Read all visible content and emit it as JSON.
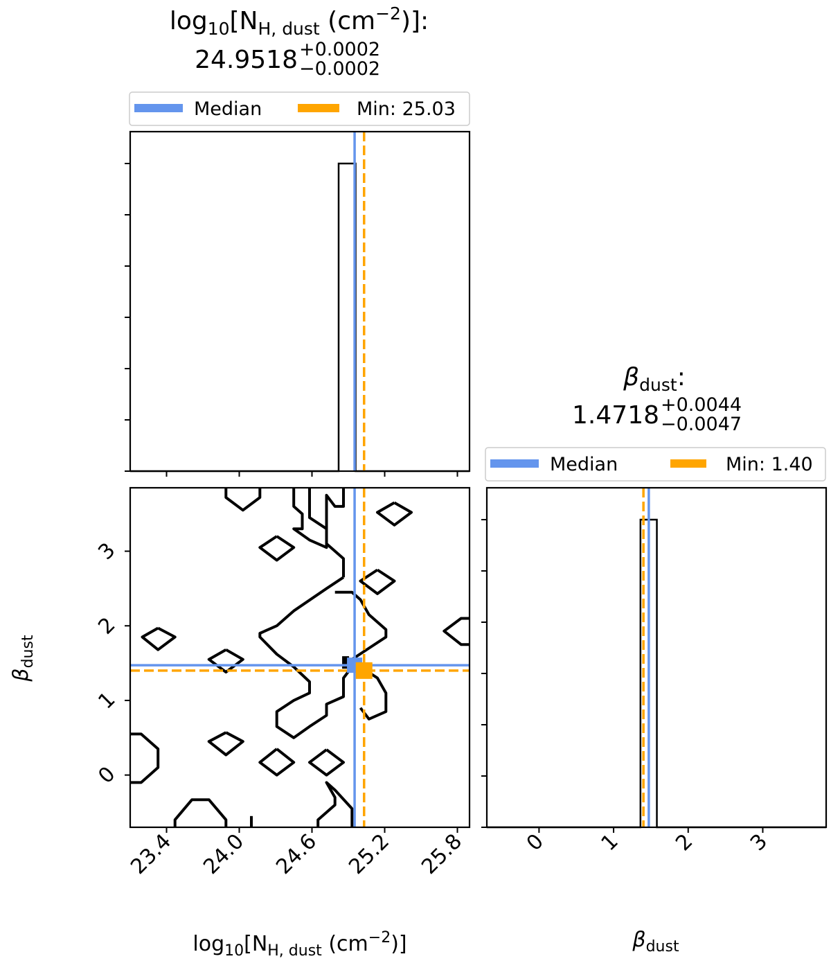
{
  "colors": {
    "median": "#6495ED",
    "min": "#FFA500",
    "contour": "#000000"
  },
  "titles": {
    "nh": {
      "name": "log",
      "name_sub": "10",
      "name_rest": "[N",
      "name_sub2": "H, dust",
      "name_unit": " (cm",
      "name_exp": "−2",
      "name_end": ")]:",
      "value": "24.9518",
      "plus": "+0.0002",
      "minus": "−0.0002"
    },
    "beta": {
      "symbol": "β",
      "symbol_sub": "dust",
      "colon": ":",
      "value": "1.4718",
      "plus": "+0.0044",
      "minus": "−0.0047"
    }
  },
  "legends": {
    "nh": {
      "median_label": "Median",
      "min_label": "Min: 25.03"
    },
    "beta": {
      "median_label": "Median",
      "min_label": "Min: 1.40"
    }
  },
  "axis_labels": {
    "x_nh": {
      "main": "log",
      "sub1": "10",
      "mid": "[N",
      "sub2": "H, dust",
      "unit": " (cm",
      "exp": "−2",
      "end": ")]"
    },
    "x_beta": {
      "main": "β",
      "sub": "dust"
    },
    "y_beta": {
      "main": "β",
      "sub": "dust"
    }
  },
  "chart_data": {
    "type": "corner",
    "parameters": [
      "log10[N_H,dust (cm^-2)]",
      "beta_dust"
    ],
    "nh_range": [
      23.1,
      25.9
    ],
    "beta_range": [
      -0.7,
      3.85
    ],
    "nh_ticks": [
      "23.4",
      "24.0",
      "24.6",
      "25.2",
      "25.8"
    ],
    "beta_ticks": [
      "0",
      "1",
      "2",
      "3"
    ],
    "median": {
      "nh": 24.9518,
      "beta": 1.4718
    },
    "minimum": {
      "nh": 25.03,
      "beta": 1.4
    },
    "hist_nh": {
      "bin_edges": [
        24.82,
        24.96
      ],
      "counts": [
        1
      ]
    },
    "hist_beta": {
      "bin_edges": [
        1.36,
        1.58
      ],
      "counts": [
        1
      ]
    },
    "contour_2d": [
      [
        [
          23.1,
          -0.1
        ],
        [
          23.19,
          -0.1
        ],
        [
          23.33,
          0.1
        ],
        [
          23.33,
          0.35
        ],
        [
          23.19,
          0.55
        ],
        [
          23.1,
          0.55
        ]
      ],
      [
        [
          23.47,
          -0.7
        ],
        [
          23.47,
          -0.6
        ],
        [
          23.61,
          -0.33
        ],
        [
          23.75,
          -0.33
        ],
        [
          23.89,
          -0.6
        ],
        [
          23.89,
          -0.7
        ]
      ],
      [
        [
          24.1,
          -0.7
        ],
        [
          24.1,
          -0.55
        ]
      ],
      [
        [
          24.65,
          -0.7
        ],
        [
          24.65,
          -0.6
        ],
        [
          24.79,
          -0.4
        ],
        [
          24.79,
          -0.3
        ],
        [
          24.72,
          -0.1
        ],
        [
          24.79,
          -0.2
        ],
        [
          24.93,
          -0.45
        ],
        [
          24.93,
          -0.7
        ]
      ],
      [
        [
          23.33,
          1.97
        ],
        [
          23.2,
          1.85
        ],
        [
          23.33,
          1.68
        ],
        [
          23.47,
          1.85
        ],
        [
          23.33,
          1.97
        ]
      ],
      [
        [
          23.89,
          1.68
        ],
        [
          23.75,
          1.55
        ],
        [
          23.89,
          1.38
        ],
        [
          24.03,
          1.55
        ],
        [
          23.89,
          1.68
        ]
      ],
      [
        [
          23.89,
          0.57
        ],
        [
          23.75,
          0.45
        ],
        [
          23.89,
          0.27
        ],
        [
          24.03,
          0.45
        ],
        [
          23.89,
          0.57
        ]
      ],
      [
        [
          24.31,
          0.35
        ],
        [
          24.17,
          0.17
        ],
        [
          24.31,
          0.0
        ],
        [
          24.45,
          0.17
        ],
        [
          24.31,
          0.35
        ]
      ],
      [
        [
          24.72,
          0.34
        ],
        [
          24.58,
          0.17
        ],
        [
          24.72,
          0.0
        ],
        [
          24.86,
          0.17
        ],
        [
          24.72,
          0.34
        ]
      ],
      [
        [
          24.31,
          3.2
        ],
        [
          24.17,
          3.05
        ],
        [
          24.31,
          2.88
        ],
        [
          24.45,
          3.05
        ],
        [
          24.31,
          3.2
        ]
      ],
      [
        [
          25.14,
          2.75
        ],
        [
          25.0,
          2.6
        ],
        [
          25.14,
          2.43
        ],
        [
          25.28,
          2.6
        ],
        [
          25.14,
          2.75
        ]
      ],
      [
        [
          25.28,
          3.65
        ],
        [
          25.14,
          3.52
        ],
        [
          25.28,
          3.35
        ],
        [
          25.42,
          3.52
        ],
        [
          25.28,
          3.65
        ]
      ],
      [
        [
          23.89,
          3.85
        ],
        [
          23.89,
          3.72
        ],
        [
          24.03,
          3.55
        ],
        [
          24.17,
          3.72
        ],
        [
          24.17,
          3.85
        ]
      ],
      [
        [
          25.9,
          2.1
        ],
        [
          25.83,
          2.1
        ],
        [
          25.69,
          1.93
        ],
        [
          25.83,
          1.75
        ],
        [
          25.9,
          1.75
        ]
      ],
      [
        [
          24.45,
          3.85
        ],
        [
          24.45,
          3.6
        ],
        [
          24.52,
          3.5
        ],
        [
          24.52,
          3.3
        ],
        [
          24.45,
          3.3
        ],
        [
          24.58,
          3.15
        ],
        [
          24.72,
          3.05
        ],
        [
          24.72,
          3.75
        ],
        [
          24.79,
          3.6
        ],
        [
          24.86,
          3.6
        ],
        [
          24.86,
          3.85
        ]
      ],
      [
        [
          24.58,
          3.85
        ],
        [
          24.58,
          3.45
        ],
        [
          24.72,
          3.3
        ],
        [
          24.72,
          3.1
        ],
        [
          24.86,
          2.9
        ],
        [
          24.86,
          2.65
        ]
      ],
      [
        [
          24.86,
          2.65
        ],
        [
          24.72,
          2.5
        ],
        [
          24.45,
          2.2
        ],
        [
          24.31,
          2.0
        ],
        [
          24.17,
          1.9
        ],
        [
          24.17,
          1.85
        ],
        [
          24.31,
          1.62
        ],
        [
          24.45,
          1.45
        ],
        [
          24.58,
          1.25
        ],
        [
          24.58,
          1.1
        ],
        [
          24.45,
          1.0
        ],
        [
          24.31,
          0.85
        ],
        [
          24.31,
          0.65
        ],
        [
          24.45,
          0.5
        ],
        [
          24.58,
          0.65
        ],
        [
          24.72,
          0.8
        ],
        [
          24.72,
          0.95
        ],
        [
          24.86,
          1.05
        ],
        [
          24.86,
          1.3
        ],
        [
          24.93,
          1.45
        ]
      ],
      [
        [
          24.79,
          2.45
        ],
        [
          24.93,
          2.45
        ],
        [
          25.0,
          2.35
        ],
        [
          25.07,
          2.15
        ],
        [
          25.21,
          1.95
        ],
        [
          25.21,
          1.85
        ],
        [
          25.07,
          1.7
        ],
        [
          24.93,
          1.55
        ],
        [
          25.0,
          1.45
        ],
        [
          25.14,
          1.3
        ],
        [
          25.21,
          1.1
        ],
        [
          25.21,
          0.85
        ],
        [
          25.07,
          0.75
        ],
        [
          25.0,
          0.9
        ]
      ]
    ]
  }
}
